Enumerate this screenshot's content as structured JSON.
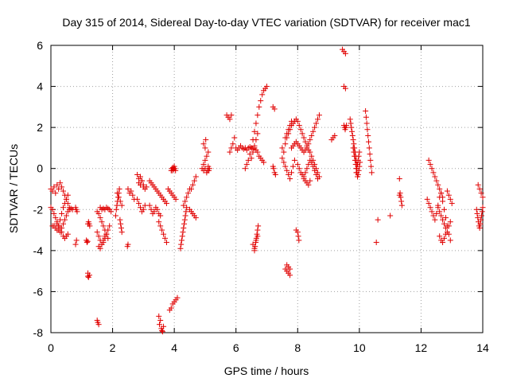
{
  "chart_data": {
    "type": "scatter",
    "title": "Day 315 of 2014, Sidereal Day-to-day VTEC variation (SDTVAR) for receiver mac1",
    "xlabel": "GPS time / hours",
    "ylabel": "SDTVAR / TECUs",
    "xlim": [
      0,
      14
    ],
    "ylim": [
      -8,
      6
    ],
    "xticks": [
      "0",
      "2",
      "4",
      "6",
      "8",
      "10",
      "12",
      "14"
    ],
    "yticks": [
      "-8",
      "-6",
      "-4",
      "-2",
      "0",
      "2",
      "4",
      "6"
    ],
    "grid": true,
    "marker": "+",
    "color": "#e00000",
    "series": [
      {
        "name": "SDTVAR",
        "x": [
          0.0,
          0.05,
          0.1,
          0.15,
          0.2,
          0.25,
          0.3,
          0.35,
          0.4,
          0.45,
          0.5,
          0.55,
          0.6,
          0.0,
          0.05,
          0.1,
          0.15,
          0.2,
          0.25,
          0.3,
          0.35,
          0.4,
          0.45,
          0.5,
          0.55,
          0.05,
          0.1,
          0.15,
          0.2,
          0.25,
          0.3,
          0.35,
          0.4,
          0.45,
          0.5,
          0.55,
          0.6,
          0.65,
          0.7,
          0.2,
          0.25,
          0.3,
          0.35,
          0.4,
          0.45,
          0.5,
          0.55,
          0.8,
          0.82,
          0.85,
          0.83,
          0.8,
          1.2,
          1.25,
          1.22,
          1.2,
          1.2,
          1.22,
          1.24,
          1.26,
          1.15,
          1.17,
          1.19,
          1.5,
          1.55,
          1.6,
          1.65,
          1.7,
          1.75,
          1.8,
          1.85,
          1.5,
          1.55,
          1.6,
          1.65,
          1.7,
          1.75,
          1.8,
          1.85,
          1.9,
          1.55,
          1.6,
          1.65,
          1.7,
          1.75,
          1.5,
          1.52,
          1.55,
          1.6,
          1.65,
          1.7,
          1.75,
          1.8,
          1.85,
          1.9,
          1.95,
          2.1,
          2.12,
          2.14,
          2.16,
          2.18,
          2.2,
          2.22,
          2.24,
          2.26,
          2.28,
          2.3,
          2.15,
          2.2,
          2.25,
          2.3,
          2.5,
          2.48,
          2.5,
          2.55,
          2.6,
          2.65,
          2.7,
          2.8,
          2.85,
          2.9,
          2.95,
          3.0,
          3.05,
          3.1,
          2.8,
          2.85,
          2.9,
          2.95,
          3.0,
          3.05,
          2.85,
          2.9,
          2.95,
          3.0,
          3.2,
          3.25,
          3.3,
          3.35,
          3.4,
          3.45,
          3.5,
          3.55,
          3.6,
          3.65,
          3.7,
          3.75,
          3.2,
          3.25,
          3.3,
          3.35,
          3.4,
          3.45,
          3.5,
          3.55,
          3.5,
          3.55,
          3.6,
          3.65,
          3.7,
          3.75,
          3.9,
          3.92,
          3.94,
          3.96,
          3.98,
          4.0,
          4.02,
          4.04,
          3.8,
          3.85,
          3.9,
          3.95,
          4.0,
          4.05,
          3.5,
          3.55,
          3.52,
          3.58,
          3.6,
          3.62,
          3.65,
          3.85,
          3.9,
          3.95,
          4.0,
          4.05,
          4.1,
          4.2,
          4.22,
          4.24,
          4.26,
          4.28,
          4.3,
          4.32,
          4.34,
          4.36,
          4.38,
          4.4,
          4.3,
          4.35,
          4.4,
          4.45,
          4.5,
          4.5,
          4.55,
          4.6,
          4.65,
          4.7,
          4.55,
          4.6,
          4.65,
          4.7,
          4.9,
          4.95,
          5.0,
          5.05,
          5.1,
          5.0,
          4.95,
          5.02,
          5.08,
          4.95,
          5.0,
          5.05,
          5.1,
          5.12,
          5.14,
          5.7,
          5.75,
          5.8,
          5.85,
          5.8,
          5.85,
          5.9,
          5.95,
          6.0,
          6.05,
          6.1,
          6.15,
          6.2,
          6.25,
          6.3,
          6.35,
          6.4,
          6.45,
          6.5,
          6.55,
          6.6,
          6.65,
          6.7,
          6.75,
          6.8,
          6.85,
          6.9,
          6.3,
          6.35,
          6.4,
          6.45,
          6.5,
          6.55,
          6.6,
          6.65,
          6.7,
          6.75,
          6.8,
          6.85,
          6.9,
          6.95,
          7.0,
          6.5,
          6.55,
          6.6,
          6.65,
          6.7,
          6.6,
          6.62,
          6.64,
          6.66,
          6.68,
          6.7,
          6.72,
          6.55,
          6.6,
          6.65,
          6.7,
          7.2,
          7.22,
          7.25,
          7.28,
          7.2,
          7.25,
          7.5,
          7.55,
          7.6,
          7.65,
          7.7,
          7.75,
          7.8,
          7.85,
          7.9,
          7.95,
          8.0,
          8.05,
          8.1,
          8.15,
          8.2,
          8.25,
          8.3,
          8.35,
          8.4,
          8.45,
          8.5,
          8.55,
          8.6,
          8.65,
          8.7,
          7.5,
          7.55,
          7.6,
          7.65,
          7.7,
          7.75,
          7.8,
          7.85,
          7.9,
          7.6,
          7.65,
          7.7,
          7.75,
          7.8,
          7.8,
          7.85,
          7.9,
          7.95,
          8.0,
          8.05,
          8.1,
          8.15,
          8.2,
          8.25,
          8.3,
          8.35,
          8.4,
          8.45,
          8.5,
          8.55,
          8.6,
          8.65,
          8.7,
          8.0,
          8.05,
          8.1,
          8.15,
          8.2,
          8.25,
          8.3,
          8.35,
          8.4,
          8.45,
          8.5,
          8.55,
          8.6,
          8.65,
          7.65,
          7.7,
          7.75,
          7.95,
          8.0,
          8.02,
          8.04,
          7.6,
          7.65,
          7.7,
          7.75,
          8.2,
          8.25,
          8.3,
          8.35,
          8.4,
          9.1,
          9.15,
          9.2,
          9.5,
          9.52,
          9.54,
          9.56,
          9.58,
          9.45,
          9.5,
          9.55,
          9.5,
          9.55,
          9.7,
          9.72,
          9.74,
          9.76,
          9.78,
          9.8,
          9.82,
          9.84,
          9.86,
          9.88,
          9.9,
          9.92,
          9.8,
          9.82,
          9.84,
          9.86,
          9.88,
          9.9,
          9.92,
          9.94,
          9.96,
          9.98,
          10.0,
          10.02,
          9.9,
          9.92,
          9.94,
          9.96,
          9.98,
          10.0,
          10.2,
          10.22,
          10.24,
          10.26,
          10.28,
          10.3,
          10.32,
          10.34,
          10.36,
          10.38,
          10.4,
          10.6,
          10.55,
          11.0,
          11.3,
          11.32,
          11.34,
          11.36,
          11.38,
          11.3,
          12.2,
          12.25,
          12.3,
          12.35,
          12.4,
          12.45,
          12.5,
          12.55,
          12.6,
          12.65,
          12.7,
          12.75,
          12.8,
          12.85,
          12.9,
          12.95,
          12.25,
          12.3,
          12.35,
          12.4,
          12.45,
          12.5,
          12.55,
          12.6,
          12.65,
          12.7,
          12.55,
          12.6,
          12.65,
          12.7,
          12.75,
          12.8,
          12.85,
          12.9,
          12.95,
          12.6,
          12.65,
          12.7,
          12.75,
          12.8,
          12.85,
          12.9,
          12.95,
          13.0,
          13.8,
          13.82,
          13.84,
          13.86,
          13.88,
          13.9,
          13.92,
          13.94,
          13.96,
          13.98,
          14.0,
          13.85,
          13.9,
          13.95,
          14.0
        ],
        "y": [
          -1.0,
          -1.1,
          -0.9,
          -1.2,
          -0.8,
          -1.0,
          -0.7,
          -0.9,
          -1.1,
          -1.3,
          -1.5,
          -1.7,
          -1.9,
          -1.9,
          -2.0,
          -2.2,
          -2.4,
          -2.6,
          -2.8,
          -2.5,
          -2.2,
          -1.9,
          -1.7,
          -1.5,
          -1.3,
          -2.8,
          -2.8,
          -2.9,
          -3.0,
          -3.0,
          -3.1,
          -2.9,
          -2.7,
          -2.5,
          -2.3,
          -2.1,
          -2.0,
          -1.95,
          -2.0,
          -2.7,
          -2.8,
          -2.9,
          -3.1,
          -3.3,
          -3.4,
          -3.3,
          -3.2,
          -1.9,
          -2.0,
          -2.1,
          -3.5,
          -3.7,
          -5.1,
          -5.2,
          -5.3,
          -5.25,
          -2.7,
          -2.6,
          -2.7,
          -2.8,
          -3.5,
          -3.6,
          -3.55,
          -2.1,
          -2.2,
          -2.4,
          -2.6,
          -2.8,
          -3.0,
          -3.2,
          -3.4,
          -3.1,
          -3.3,
          -3.5,
          -3.7,
          -3.6,
          -3.4,
          -3.2,
          -3.0,
          -2.8,
          -3.8,
          -3.9,
          -3.7,
          -3.5,
          -3.3,
          -7.4,
          -7.5,
          -7.6,
          -1.9,
          -2.0,
          -1.95,
          -2.0,
          -1.9,
          -1.95,
          -2.0,
          -2.1,
          -2.3,
          -2.0,
          -1.8,
          -1.6,
          -1.4,
          -1.2,
          -1.0,
          -2.5,
          -2.7,
          -2.9,
          -3.1,
          -1.2,
          -1.4,
          -1.6,
          -1.8,
          -3.7,
          -3.8,
          -1.0,
          -1.2,
          -1.1,
          -1.3,
          -1.5,
          -0.3,
          -0.5,
          -0.4,
          -0.6,
          -0.8,
          -1.0,
          -0.9,
          -1.5,
          -1.7,
          -1.9,
          -2.1,
          -2.0,
          -1.8,
          -0.7,
          -0.8,
          -0.6,
          -0.9,
          -0.6,
          -0.7,
          -0.8,
          -0.9,
          -1.0,
          -1.1,
          -1.2,
          -1.3,
          -1.4,
          -1.5,
          -1.6,
          -1.7,
          -1.8,
          -2.0,
          -2.2,
          -2.1,
          -1.9,
          -2.0,
          -2.2,
          -2.3,
          -2.6,
          -2.8,
          -3.0,
          -3.2,
          -3.4,
          -3.6,
          -0.1,
          0.0,
          -0.1,
          0.05,
          -0.05,
          0.1,
          0.0,
          -0.1,
          -1.0,
          -1.1,
          -1.2,
          -1.3,
          -1.4,
          -1.5,
          -7.2,
          -7.4,
          -7.6,
          -7.8,
          -7.9,
          -7.95,
          -7.7,
          -6.9,
          -6.8,
          -6.6,
          -6.5,
          -6.4,
          -6.3,
          -3.9,
          -3.7,
          -3.5,
          -3.3,
          -3.1,
          -2.9,
          -2.7,
          -2.5,
          -2.3,
          -2.1,
          -1.9,
          -1.8,
          -1.6,
          -1.4,
          -1.2,
          -1.0,
          -2.0,
          -2.1,
          -2.2,
          -2.3,
          -2.4,
          -1.0,
          -0.8,
          -0.6,
          -0.4,
          0.0,
          0.2,
          0.4,
          0.6,
          0.8,
          1.0,
          1.2,
          1.4,
          -0.1,
          -0.1,
          0.0,
          -0.2,
          0.1,
          -0.1,
          0.0,
          2.6,
          2.5,
          2.4,
          2.6,
          0.8,
          1.0,
          1.2,
          1.5,
          1.0,
          0.9,
          1.0,
          1.1,
          1.0,
          0.95,
          1.0,
          0.9,
          1.0,
          1.05,
          1.0,
          0.95,
          1.0,
          0.9,
          0.8,
          0.6,
          0.5,
          0.4,
          0.3,
          0.0,
          0.2,
          0.4,
          0.7,
          1.0,
          1.4,
          1.8,
          2.2,
          2.6,
          3.0,
          3.3,
          3.6,
          3.8,
          3.9,
          4.0,
          0.5,
          0.8,
          1.1,
          1.4,
          1.7,
          -4.0,
          -3.8,
          -3.6,
          -3.4,
          -3.2,
          -3.0,
          -2.8,
          -3.7,
          -3.9,
          -3.5,
          -3.3,
          0.1,
          0.0,
          -0.2,
          -0.3,
          3.0,
          2.9,
          1.0,
          0.8,
          1.2,
          1.5,
          1.7,
          1.9,
          2.1,
          2.2,
          2.3,
          2.4,
          2.3,
          2.1,
          1.9,
          1.7,
          1.5,
          1.3,
          1.1,
          0.9,
          0.8,
          0.6,
          0.4,
          0.2,
          0.0,
          -0.2,
          -0.4,
          0.5,
          0.3,
          0.1,
          -0.1,
          -0.3,
          -0.5,
          -0.2,
          0.1,
          0.4,
          1.5,
          1.7,
          1.9,
          2.1,
          2.3,
          1.0,
          1.1,
          1.2,
          1.3,
          1.2,
          1.1,
          1.0,
          0.9,
          0.8,
          0.9,
          1.0,
          1.2,
          1.4,
          1.6,
          1.8,
          2.0,
          2.2,
          2.4,
          2.6,
          0.2,
          0.0,
          -0.2,
          -0.3,
          -0.4,
          -0.2,
          0.0,
          0.2,
          0.4,
          0.3,
          0.1,
          -0.1,
          -0.3,
          -0.5,
          -4.7,
          -4.8,
          -4.9,
          -3.0,
          -3.1,
          -3.3,
          -3.5,
          -4.9,
          -5.0,
          -5.1,
          -5.2,
          -0.5,
          -0.6,
          -0.7,
          -0.8,
          -0.6,
          1.4,
          1.5,
          1.6,
          2.1,
          2.0,
          1.9,
          2.0,
          2.1,
          5.8,
          5.7,
          5.6,
          4.0,
          3.9,
          2.4,
          2.2,
          2.0,
          1.8,
          1.6,
          1.4,
          1.2,
          1.0,
          0.8,
          0.6,
          0.4,
          0.2,
          1.0,
          0.8,
          0.6,
          0.4,
          0.2,
          0.0,
          -0.2,
          -0.4,
          -0.3,
          -0.1,
          0.1,
          0.3,
          -0.2,
          0.0,
          0.2,
          0.4,
          0.6,
          0.8,
          2.8,
          2.5,
          2.2,
          1.9,
          1.6,
          1.3,
          1.0,
          0.7,
          0.4,
          0.1,
          -0.2,
          -2.5,
          -3.6,
          -2.3,
          -0.5,
          -1.2,
          -1.4,
          -1.6,
          -1.8,
          -1.3,
          -1.5,
          -1.7,
          -1.9,
          -2.1,
          -2.3,
          -2.5,
          -2.2,
          -1.8,
          -1.4,
          -1.2,
          -1.6,
          -2.0,
          -2.4,
          -2.8,
          -3.2,
          -3.5,
          0.4,
          0.2,
          0.0,
          -0.2,
          -0.4,
          -0.6,
          -0.8,
          -1.0,
          -1.2,
          -1.4,
          -1.9,
          -2.1,
          -2.3,
          -2.5,
          -2.7,
          -2.9,
          -3.1,
          -2.8,
          -2.6,
          -3.3,
          -3.5,
          -3.6,
          -3.4,
          -3.2,
          -1.1,
          -1.3,
          -1.5,
          -1.7,
          -2.0,
          -2.2,
          -2.4,
          -2.6,
          -2.8,
          -2.9,
          -2.7,
          -2.5,
          -2.3,
          -2.1,
          -1.9,
          -0.8,
          -1.0,
          -1.2,
          -1.4
        ]
      }
    ]
  }
}
